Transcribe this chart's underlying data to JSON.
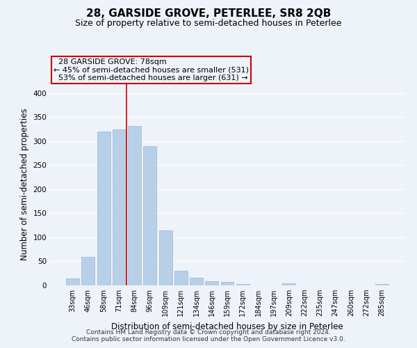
{
  "title": "28, GARSIDE GROVE, PETERLEE, SR8 2QB",
  "subtitle": "Size of property relative to semi-detached houses in Peterlee",
  "xlabel": "Distribution of semi-detached houses by size in Peterlee",
  "ylabel": "Number of semi-detached properties",
  "categories": [
    "33sqm",
    "46sqm",
    "58sqm",
    "71sqm",
    "84sqm",
    "96sqm",
    "109sqm",
    "121sqm",
    "134sqm",
    "146sqm",
    "159sqm",
    "172sqm",
    "184sqm",
    "197sqm",
    "209sqm",
    "222sqm",
    "235sqm",
    "247sqm",
    "260sqm",
    "272sqm",
    "285sqm"
  ],
  "values": [
    15,
    60,
    320,
    325,
    332,
    290,
    115,
    30,
    16,
    8,
    7,
    3,
    0,
    0,
    5,
    0,
    0,
    0,
    0,
    0,
    3
  ],
  "bar_color": "#b8cfe8",
  "bar_edge_color": "#9ab8d8",
  "property_label": "28 GARSIDE GROVE: 78sqm",
  "smaller_pct": "45%",
  "smaller_count": 531,
  "larger_pct": "53%",
  "larger_count": 631,
  "annotation_box_edgecolor": "#cc0000",
  "vline_color": "#cc0000",
  "vline_x": 3.5,
  "ylim": [
    0,
    420
  ],
  "yticks": [
    0,
    50,
    100,
    150,
    200,
    250,
    300,
    350,
    400
  ],
  "footer_line1": "Contains HM Land Registry data © Crown copyright and database right 2024.",
  "footer_line2": "Contains public sector information licensed under the Open Government Licence v3.0.",
  "background_color": "#eef2f9",
  "grid_color": "#ffffff",
  "title_fontsize": 11,
  "subtitle_fontsize": 9,
  "axis_label_fontsize": 8.5,
  "tick_fontsize": 7,
  "annotation_fontsize": 8,
  "footer_fontsize": 6.5
}
